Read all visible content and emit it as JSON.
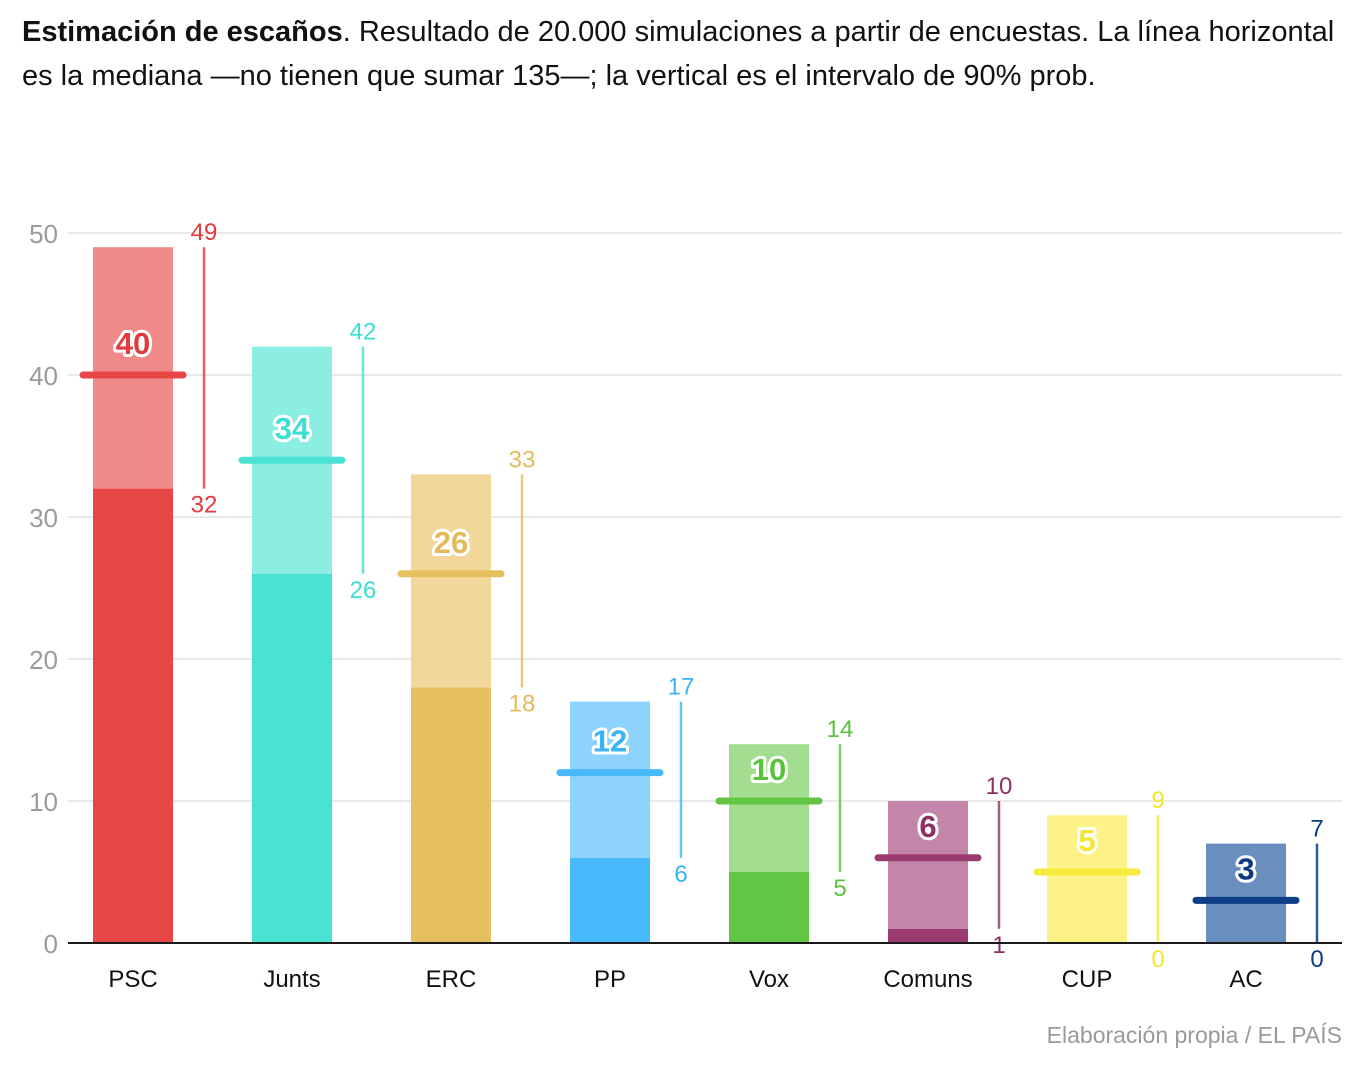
{
  "header": {
    "title_bold": "Estimación de escaños",
    "title_rest": ". Resultado de 20.000 simulaciones a partir de encuestas. La línea horizontal es la mediana —no tienen que sumar 135—; la vertical es el intervalo de 90% prob."
  },
  "source": "Elaboración propia / EL PAÍS",
  "chart_data": {
    "type": "bar",
    "title": "Estimación de escaños",
    "ylim": [
      0,
      50
    ],
    "yticks": [
      0,
      10,
      20,
      30,
      40,
      50
    ],
    "grid": true,
    "categories": [
      "PSC",
      "Junts",
      "ERC",
      "PP",
      "Vox",
      "Comuns",
      "CUP",
      "AC"
    ],
    "series": [
      {
        "name": "Mediana",
        "values": [
          40,
          34,
          26,
          12,
          10,
          6,
          5,
          3
        ]
      },
      {
        "name": "Mínimo intervalo 90%",
        "values": [
          32,
          26,
          18,
          6,
          5,
          1,
          0,
          0
        ]
      },
      {
        "name": "Máximo intervalo 90%",
        "values": [
          49,
          42,
          33,
          17,
          14,
          10,
          9,
          7
        ]
      }
    ],
    "colors": {
      "dark": [
        "#e84545",
        "#4ae2d2",
        "#e6c060",
        "#48b9fc",
        "#62c544",
        "#9b3a6e",
        "#f8ea3a",
        "#0d3e86"
      ],
      "light": [
        "#f08a89",
        "#8ceee3",
        "#f2d79a",
        "#8ed3fd",
        "#a3dd8f",
        "#c386aa",
        "#fdf287",
        "#6a8fbe"
      ],
      "label": [
        "#e23a3d",
        "#3edfd0",
        "#e4b95a",
        "#3bb3fa",
        "#58c23d",
        "#8f2f63",
        "#f4e532",
        "#0a3b82"
      ]
    }
  }
}
